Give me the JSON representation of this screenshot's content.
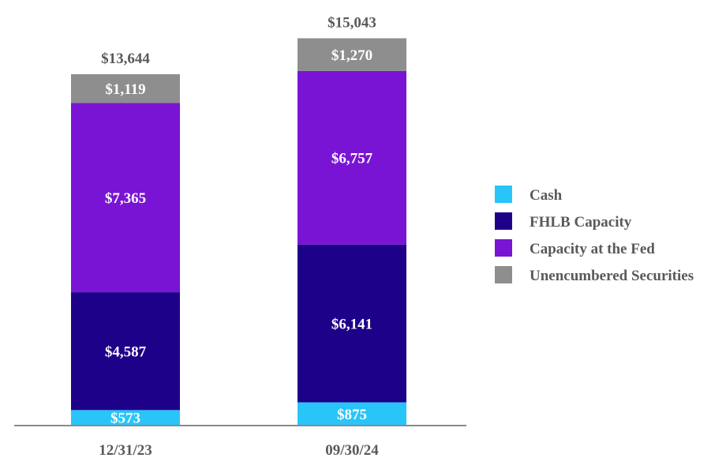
{
  "chart_data": {
    "type": "bar",
    "stacked": true,
    "title": "",
    "xlabel": "",
    "ylabel": "",
    "ylim": [
      0,
      15043
    ],
    "grid": false,
    "legend_position": "right",
    "categories": [
      "12/31/23",
      "09/30/24"
    ],
    "series": [
      {
        "name": "Cash",
        "color": "#29C5F8",
        "values": [
          573,
          875
        ],
        "labels": [
          "$573",
          "$875"
        ]
      },
      {
        "name": "FHLB Capacity",
        "color": "#1E0189",
        "values": [
          4587,
          6141
        ],
        "labels": [
          "$4,587",
          "$6,141"
        ]
      },
      {
        "name": "Capacity at the Fed",
        "color": "#7A14D4",
        "values": [
          7365,
          6757
        ],
        "labels": [
          "$7,365",
          "$6,757"
        ]
      },
      {
        "name": "Unencumbered Securities",
        "color": "#8E8E8E",
        "values": [
          1119,
          1270
        ],
        "labels": [
          "$1,119",
          "$1,270"
        ]
      }
    ],
    "totals": [
      13644,
      15043
    ],
    "total_labels": [
      "$13,644",
      "$15,043"
    ]
  }
}
